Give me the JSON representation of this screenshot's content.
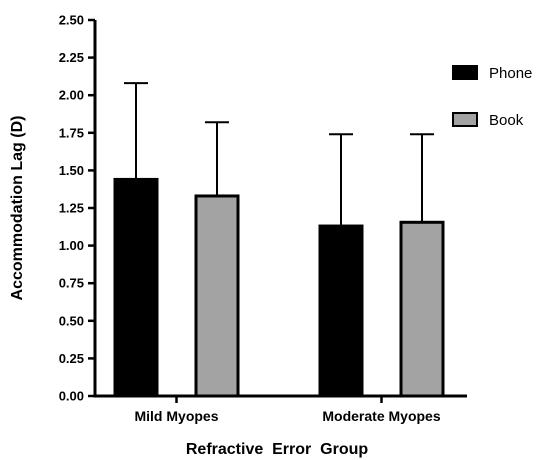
{
  "chart_data": {
    "type": "bar",
    "xlabel": "Refractive  Error  Group",
    "ylabel": "Accommodation Lag (D)",
    "ylim": [
      0,
      2.5
    ],
    "yticks": [
      "0.00",
      "0.25",
      "0.50",
      "0.75",
      "1.00",
      "1.25",
      "1.50",
      "1.75",
      "2.00",
      "2.25",
      "2.50"
    ],
    "categories": [
      "Mild Myopes",
      "Moderate Myopes"
    ],
    "series": [
      {
        "name": "Phone",
        "color": "#000000",
        "values": [
          1.44,
          1.13
        ],
        "error_upper": [
          2.08,
          1.74
        ]
      },
      {
        "name": "Book",
        "color": "#a3a3a3",
        "values": [
          1.33,
          1.155
        ],
        "error_upper": [
          1.82,
          1.74
        ]
      }
    ],
    "legend": {
      "placement": "right"
    },
    "grid": false
  }
}
